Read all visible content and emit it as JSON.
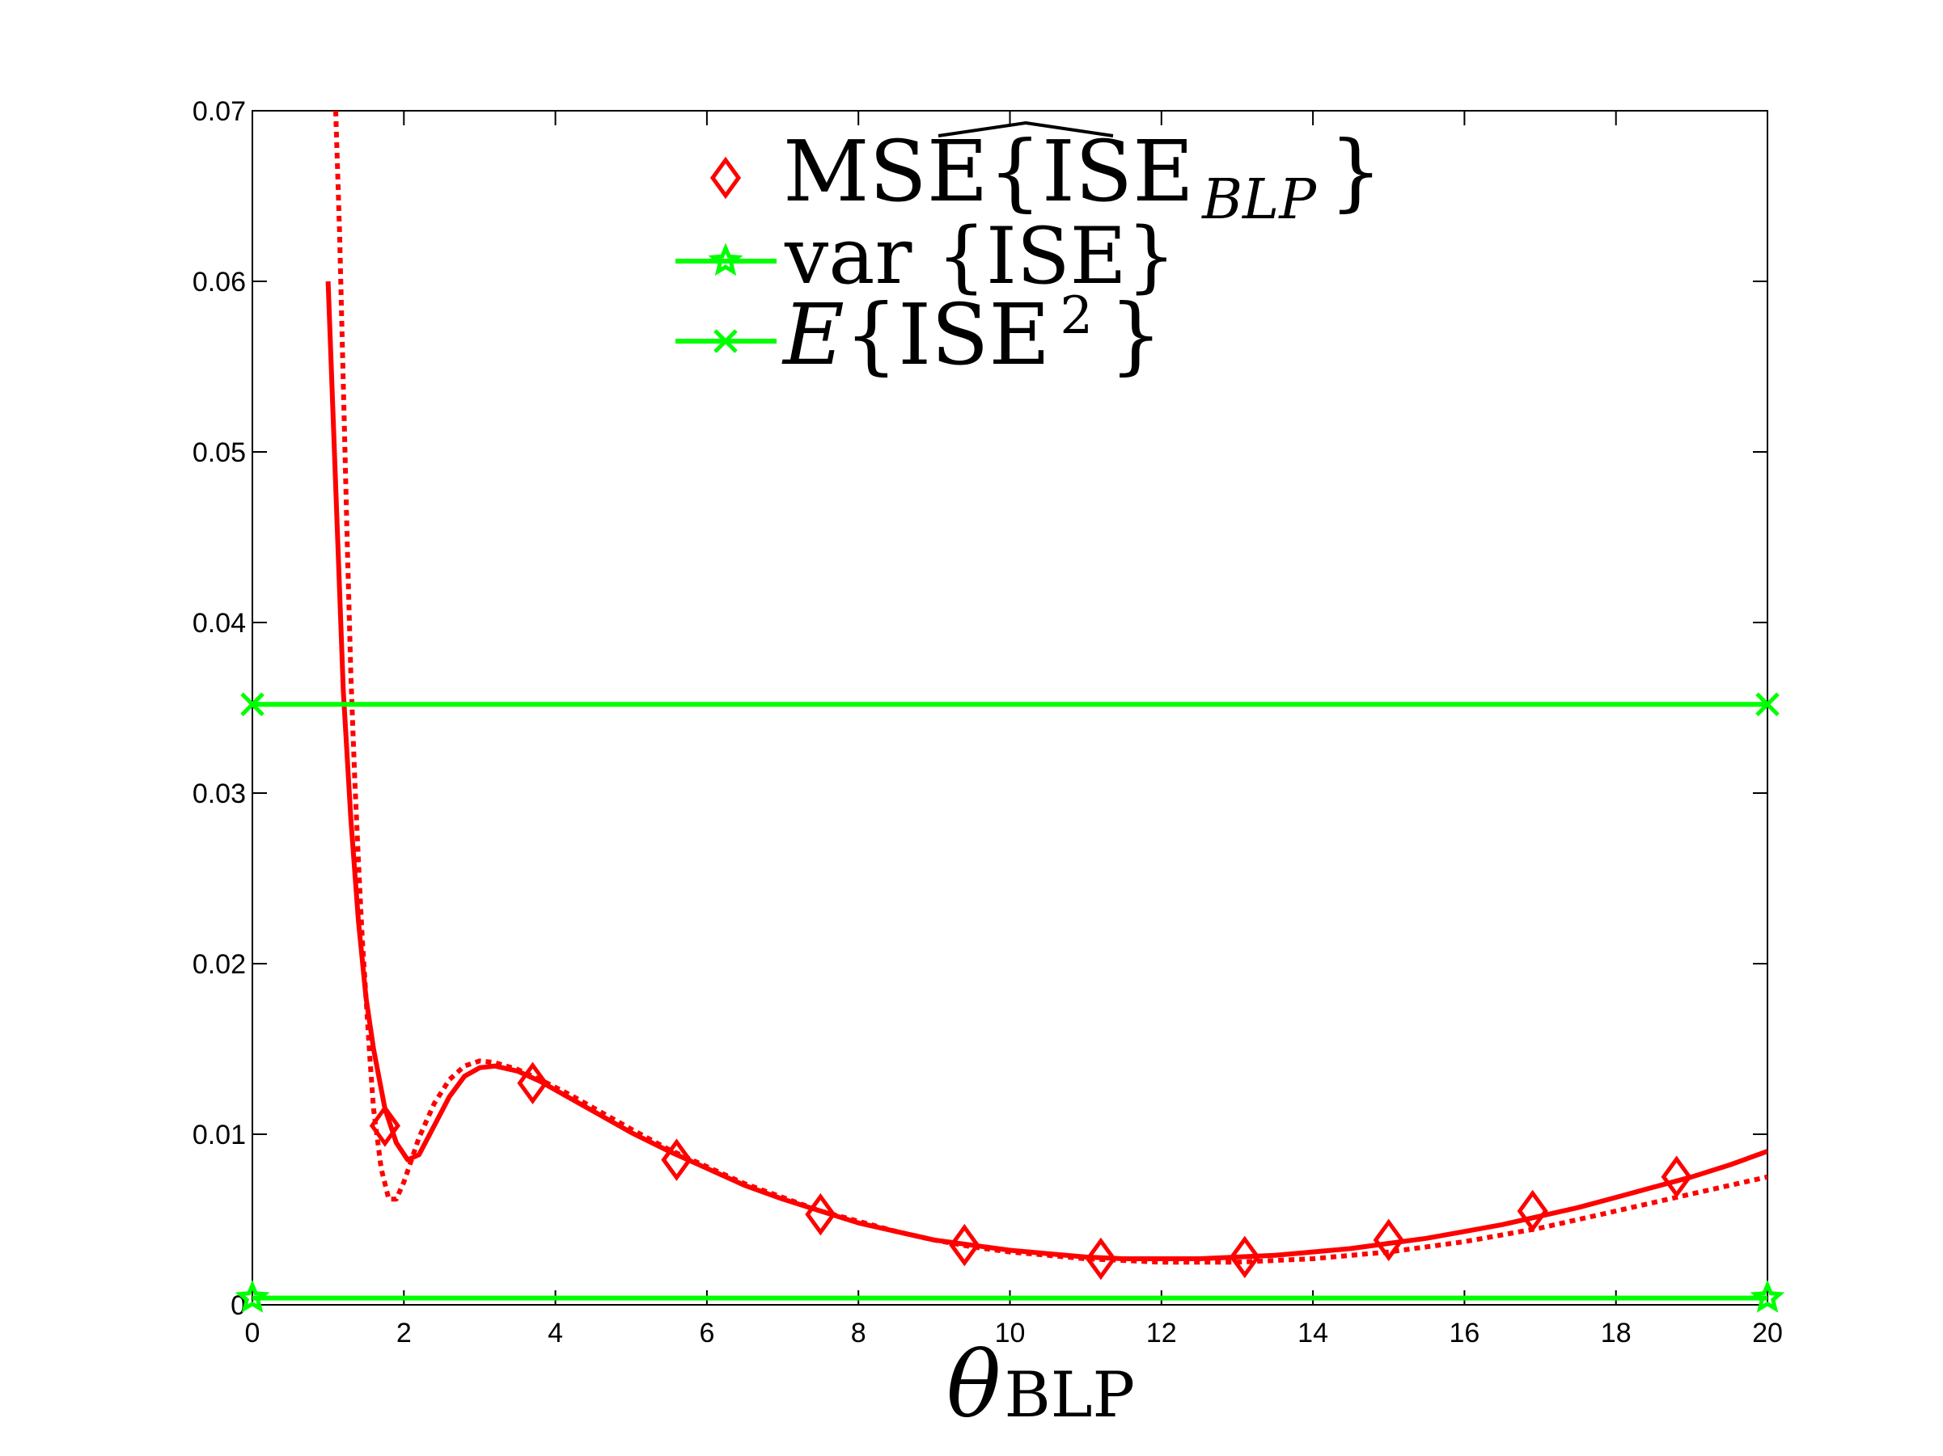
{
  "chart_data": {
    "type": "line",
    "xlabel": {
      "symbol": "θ",
      "subscript": "BLP"
    },
    "ylabel": "",
    "title": "",
    "xlim": [
      0,
      20
    ],
    "ylim": [
      0,
      0.07
    ],
    "x_ticks": [
      0,
      2,
      4,
      6,
      8,
      10,
      12,
      14,
      16,
      18,
      20
    ],
    "x_tick_labels": [
      "0",
      "2",
      "4",
      "6",
      "8",
      "10",
      "12",
      "14",
      "16",
      "18",
      "20"
    ],
    "y_ticks": [
      0,
      0.01,
      0.02,
      0.03,
      0.04,
      0.05,
      0.06,
      0.07
    ],
    "y_tick_labels": [
      "0",
      "0.01",
      "0.02",
      "0.03",
      "0.04",
      "0.05",
      "0.06",
      "0.07"
    ],
    "grid": false,
    "legend_position": "top-center",
    "legend": [
      {
        "marker": "diamond",
        "color": "#ff0000",
        "label_main": "MSE{",
        "label_hat": "ISE",
        "label_sub": "BLP",
        "label_end": "}"
      },
      {
        "marker": "star",
        "color": "#00ff00",
        "label_main": "var {ISE}"
      },
      {
        "marker": "x",
        "color": "#00ff00",
        "label_main": "E",
        "label_rest": "{ISE",
        "label_sup": "2",
        "label_end": "}"
      }
    ],
    "series": [
      {
        "role": "solid-mse-curve",
        "color": "#ff0000",
        "style": "solid",
        "x": [
          1.0,
          1.1,
          1.2,
          1.3,
          1.4,
          1.5,
          1.6,
          1.75,
          1.9,
          2.05,
          2.2,
          2.4,
          2.6,
          2.8,
          3.0,
          3.2,
          3.5,
          3.8,
          4.2,
          4.6,
          5.0,
          5.5,
          6.0,
          6.5,
          7.0,
          7.5,
          8.0,
          8.5,
          9.0,
          9.5,
          10.0,
          10.5,
          11.0,
          11.5,
          12.0,
          12.5,
          13.0,
          13.5,
          14.0,
          14.5,
          15.0,
          15.5,
          16.0,
          16.5,
          17.0,
          17.5,
          18.0,
          18.5,
          19.0,
          19.5,
          20.0
        ],
        "y": [
          0.06,
          0.048,
          0.036,
          0.0285,
          0.0225,
          0.018,
          0.015,
          0.0115,
          0.0095,
          0.0085,
          0.0088,
          0.0105,
          0.0122,
          0.0134,
          0.0139,
          0.014,
          0.0137,
          0.0131,
          0.0121,
          0.0111,
          0.0101,
          0.009,
          0.008,
          0.007,
          0.0062,
          0.0055,
          0.0048,
          0.0043,
          0.0038,
          0.0035,
          0.0032,
          0.003,
          0.0028,
          0.0027,
          0.0027,
          0.0027,
          0.0028,
          0.0029,
          0.0031,
          0.0033,
          0.0036,
          0.0039,
          0.0043,
          0.0047,
          0.0052,
          0.0057,
          0.0063,
          0.0069,
          0.0075,
          0.0082,
          0.009
        ]
      },
      {
        "role": "dotted-mse-curve",
        "color": "#ff0000",
        "style": "dotted",
        "x": [
          1.1,
          1.15,
          1.2,
          1.25,
          1.3,
          1.35,
          1.4,
          1.45,
          1.5,
          1.55,
          1.6,
          1.7,
          1.8,
          1.9,
          2.0,
          2.1,
          2.2,
          2.4,
          2.6,
          2.8,
          3.0,
          3.2,
          3.5,
          3.8,
          4.2,
          4.6,
          5.0,
          5.5,
          6.0,
          6.5,
          7.0,
          7.5,
          8.0,
          8.5,
          9.0,
          9.5,
          10.0,
          10.5,
          11.0,
          11.5,
          12.0,
          12.5,
          13.0,
          13.5,
          14.0,
          14.5,
          15.0,
          15.5,
          16.0,
          16.5,
          17.0,
          17.5,
          18.0,
          18.5,
          19.0,
          19.5,
          20.0
        ],
        "y": [
          0.07,
          0.063,
          0.054,
          0.045,
          0.037,
          0.031,
          0.026,
          0.0215,
          0.018,
          0.0145,
          0.0115,
          0.008,
          0.0062,
          0.0062,
          0.0072,
          0.0085,
          0.0098,
          0.0118,
          0.0132,
          0.014,
          0.0143,
          0.0142,
          0.0138,
          0.0132,
          0.0123,
          0.0113,
          0.0103,
          0.0091,
          0.0081,
          0.0071,
          0.0063,
          0.0055,
          0.0049,
          0.0043,
          0.0038,
          0.0034,
          0.0031,
          0.0029,
          0.0027,
          0.0026,
          0.0025,
          0.0025,
          0.0025,
          0.0026,
          0.0027,
          0.0029,
          0.0031,
          0.0034,
          0.0037,
          0.0041,
          0.0045,
          0.005,
          0.0055,
          0.006,
          0.0065,
          0.007,
          0.0075
        ]
      },
      {
        "role": "mse-markers",
        "color": "#ff0000",
        "style": "markers",
        "marker": "diamond",
        "x": [
          1.75,
          3.7,
          5.6,
          7.5,
          9.4,
          11.2,
          13.1,
          15.0,
          16.9,
          18.8
        ],
        "y": [
          0.0105,
          0.013,
          0.0085,
          0.0053,
          0.0035,
          0.0027,
          0.0028,
          0.0038,
          0.0055,
          0.0075
        ]
      },
      {
        "role": "var-ise",
        "name": "var {ISE}",
        "color": "#00ff00",
        "style": "solid",
        "marker": "star",
        "x": [
          0,
          20
        ],
        "y": [
          0.0004,
          0.0004
        ]
      },
      {
        "role": "e-ise-squared",
        "name": "E{ISE 2}",
        "color": "#00ff00",
        "style": "solid",
        "marker": "x",
        "x": [
          0,
          20
        ],
        "y": [
          0.0352,
          0.0352
        ]
      }
    ]
  }
}
